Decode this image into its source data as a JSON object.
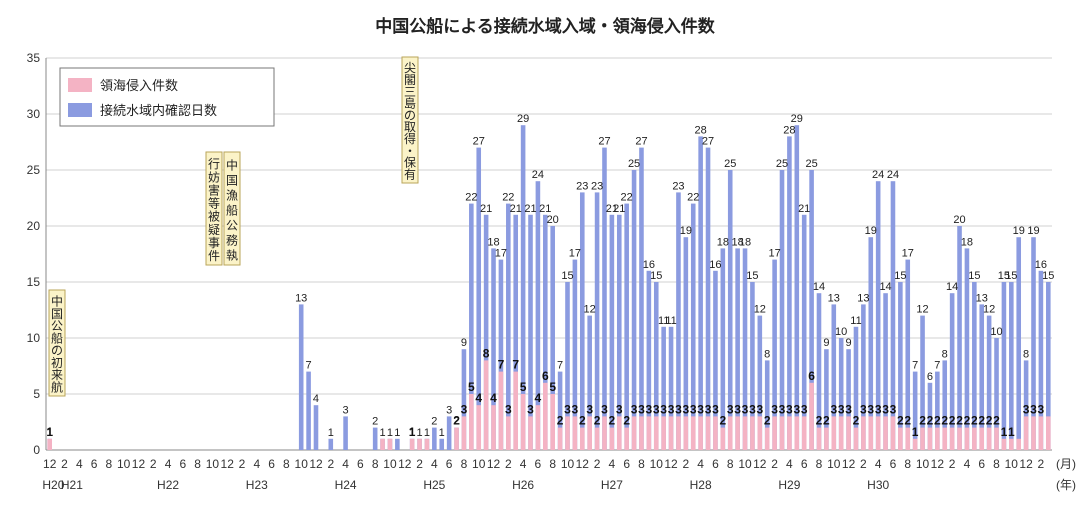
{
  "colors": {
    "blue_bar": "#8b9be0",
    "pink_bar": "#f4b3c4",
    "grid": "#d0d0d0",
    "annotation_fill": "#fbf3c8",
    "annotation_border": "#b9a55a"
  },
  "chart_data": {
    "type": "bar",
    "title": "中国公船による接続水域入域・領海侵入件数",
    "y_ticks": [
      "0",
      "5",
      "10",
      "15",
      "20",
      "25",
      "30",
      "35"
    ],
    "ylim": [
      0,
      35
    ],
    "grid": true,
    "legend_position": "top-left",
    "legend": [
      "領海侵入件数",
      "接続水域内確認日数"
    ],
    "x_unit_month": "(月)",
    "x_unit_year": "(年)",
    "month_tick_labels": [
      "12",
      "2",
      "4",
      "6",
      "8",
      "10",
      "12",
      "2",
      "4",
      "6",
      "8",
      "10",
      "12",
      "2",
      "4",
      "6",
      "8",
      "10",
      "12",
      "2",
      "4",
      "6",
      "8",
      "10",
      "12",
      "2",
      "4",
      "6",
      "8",
      "10",
      "12",
      "2",
      "4",
      "6",
      "8",
      "10",
      "12",
      "2",
      "4",
      "6",
      "8",
      "10",
      "12",
      "2",
      "4",
      "6",
      "8",
      "10",
      "12",
      "2",
      "4",
      "6",
      "8",
      "10",
      "12",
      "2",
      "4",
      "6",
      "8",
      "10",
      "12",
      "2",
      "4",
      "6",
      "8",
      "10",
      "12",
      "2"
    ],
    "era_labels": [
      "H20",
      "H21",
      "H22",
      "H23",
      "H24",
      "H25",
      "H26",
      "H27",
      "H28",
      "H29",
      "H30"
    ],
    "annotations": [
      "中国公船の初来航",
      "中国漁船公務執行妨害等被疑事件",
      "尖閣三島の取得・保有"
    ],
    "series": [
      {
        "name": "接続水域内確認日数",
        "values": [
          1,
          0,
          0,
          0,
          0,
          0,
          0,
          0,
          0,
          0,
          0,
          0,
          0,
          0,
          0,
          0,
          0,
          0,
          0,
          0,
          0,
          0,
          0,
          0,
          0,
          0,
          0,
          0,
          0,
          0,
          0,
          0,
          0,
          0,
          13,
          7,
          4,
          0,
          1,
          0,
          3,
          0,
          0,
          0,
          2,
          1,
          1,
          1,
          0,
          1,
          1,
          1,
          2,
          1,
          3,
          2,
          9,
          22,
          27,
          21,
          18,
          17,
          22,
          21,
          29,
          21,
          24,
          21,
          20,
          7,
          15,
          17,
          23,
          12,
          23,
          27,
          21,
          21,
          22,
          25,
          27,
          16,
          15,
          11,
          11,
          23,
          19,
          22,
          28,
          27,
          16,
          18,
          25,
          18,
          18,
          15,
          12,
          8,
          17,
          25,
          28,
          29,
          21,
          25,
          14,
          9,
          13,
          10,
          9,
          11,
          13,
          19,
          24,
          14,
          24,
          15,
          17,
          7,
          12,
          6,
          7,
          8,
          14,
          20,
          18,
          15,
          13,
          12,
          10,
          15,
          15,
          19,
          8,
          19,
          16,
          15
        ]
      },
      {
        "name": "領海侵入件数",
        "values": [
          1,
          0,
          0,
          0,
          0,
          0,
          0,
          0,
          0,
          0,
          0,
          0,
          0,
          0,
          0,
          0,
          0,
          0,
          0,
          0,
          0,
          0,
          0,
          0,
          0,
          0,
          0,
          0,
          0,
          0,
          0,
          0,
          0,
          0,
          0,
          0,
          0,
          0,
          0,
          0,
          0,
          0,
          0,
          0,
          0,
          1,
          1,
          0,
          0,
          1,
          1,
          1,
          0,
          0,
          0,
          2,
          3,
          5,
          4,
          8,
          4,
          7,
          3,
          7,
          5,
          3,
          4,
          6,
          5,
          2,
          3,
          3,
          2,
          3,
          2,
          3,
          2,
          3,
          2,
          3,
          3,
          3,
          3,
          3,
          3,
          3,
          3,
          3,
          3,
          3,
          3,
          2,
          3,
          3,
          3,
          3,
          3,
          2,
          3,
          3,
          3,
          3,
          3,
          6,
          2,
          2,
          3,
          3,
          3,
          2,
          3,
          3,
          3,
          3,
          3,
          2,
          2,
          1,
          2,
          2,
          2,
          2,
          2,
          2,
          2,
          2,
          2,
          2,
          2,
          1,
          1,
          1,
          3,
          3,
          3,
          3
        ]
      }
    ],
    "blue_labels": [
      [
        0,
        "1"
      ],
      [
        34,
        "13"
      ],
      [
        35,
        "7"
      ],
      [
        36,
        "4"
      ],
      [
        38,
        "1"
      ],
      [
        40,
        "3"
      ],
      [
        44,
        "2"
      ],
      [
        45,
        "1"
      ],
      [
        46,
        "1"
      ],
      [
        47,
        "1"
      ],
      [
        49,
        "1"
      ],
      [
        50,
        "1"
      ],
      [
        51,
        "1"
      ],
      [
        52,
        "2"
      ],
      [
        53,
        "1"
      ],
      [
        54,
        "3"
      ],
      [
        55,
        "2"
      ],
      [
        56,
        "9"
      ],
      [
        57,
        "22"
      ],
      [
        58,
        "27"
      ],
      [
        59,
        "21"
      ],
      [
        60,
        "18"
      ],
      [
        61,
        "17"
      ],
      [
        62,
        "22"
      ],
      [
        63,
        "21"
      ],
      [
        64,
        "29"
      ],
      [
        65,
        "21"
      ],
      [
        66,
        "24"
      ],
      [
        67,
        "21"
      ],
      [
        68,
        "20"
      ],
      [
        69,
        "7"
      ],
      [
        70,
        "15"
      ],
      [
        71,
        "17"
      ],
      [
        72,
        "23"
      ],
      [
        73,
        "12"
      ],
      [
        74,
        "23"
      ],
      [
        75,
        "27"
      ],
      [
        76,
        "21"
      ],
      [
        77,
        "21"
      ],
      [
        78,
        "22"
      ],
      [
        79,
        "25"
      ],
      [
        80,
        "27"
      ],
      [
        81,
        "16"
      ],
      [
        82,
        "15"
      ],
      [
        83,
        "11"
      ],
      [
        84,
        "11"
      ],
      [
        85,
        "23"
      ],
      [
        86,
        "19"
      ],
      [
        87,
        "22"
      ],
      [
        88,
        "28"
      ],
      [
        89,
        "27"
      ],
      [
        90,
        "16"
      ],
      [
        91,
        "18"
      ],
      [
        92,
        "25"
      ],
      [
        93,
        "18"
      ],
      [
        94,
        "18"
      ],
      [
        95,
        "15"
      ],
      [
        96,
        "12"
      ],
      [
        97,
        "8"
      ],
      [
        98,
        "17"
      ],
      [
        99,
        "25"
      ],
      [
        100,
        "28"
      ],
      [
        101,
        "29"
      ],
      [
        102,
        "21"
      ],
      [
        103,
        "25"
      ],
      [
        104,
        "14"
      ],
      [
        105,
        "9"
      ],
      [
        106,
        "13"
      ],
      [
        107,
        "10"
      ],
      [
        108,
        "9"
      ],
      [
        109,
        "11"
      ],
      [
        110,
        "13"
      ],
      [
        111,
        "19"
      ],
      [
        112,
        "24"
      ],
      [
        113,
        "14"
      ],
      [
        114,
        "24"
      ],
      [
        115,
        "15"
      ],
      [
        116,
        "17"
      ],
      [
        117,
        "7"
      ],
      [
        118,
        "12"
      ],
      [
        119,
        "6"
      ],
      [
        120,
        "7"
      ],
      [
        121,
        "8"
      ],
      [
        122,
        "14"
      ],
      [
        123,
        "20"
      ],
      [
        124,
        "18"
      ],
      [
        125,
        "15"
      ],
      [
        126,
        "13"
      ],
      [
        127,
        "12"
      ],
      [
        128,
        "10"
      ],
      [
        129,
        "15"
      ],
      [
        130,
        "15"
      ],
      [
        131,
        "19"
      ],
      [
        132,
        "8"
      ],
      [
        133,
        "19"
      ],
      [
        134,
        "16"
      ],
      [
        135,
        "15"
      ]
    ],
    "pink_labels": [
      [
        0,
        "1"
      ],
      [
        49,
        "1"
      ],
      [
        55,
        "2"
      ],
      [
        56,
        "3"
      ],
      [
        57,
        "5"
      ],
      [
        58,
        "4"
      ],
      [
        59,
        "8"
      ],
      [
        60,
        "4"
      ],
      [
        61,
        "7"
      ],
      [
        62,
        "3"
      ],
      [
        63,
        "7"
      ],
      [
        64,
        "5"
      ],
      [
        65,
        "3"
      ],
      [
        66,
        "4"
      ],
      [
        67,
        "6"
      ],
      [
        68,
        "5"
      ],
      [
        69,
        "2"
      ],
      [
        70,
        "3"
      ],
      [
        71,
        "3"
      ],
      [
        72,
        "2"
      ],
      [
        73,
        "3"
      ],
      [
        74,
        "2"
      ],
      [
        75,
        "3"
      ],
      [
        76,
        "2"
      ],
      [
        77,
        "3"
      ],
      [
        78,
        "2"
      ],
      [
        79,
        "3"
      ],
      [
        80,
        "3"
      ],
      [
        81,
        "3"
      ],
      [
        82,
        "3"
      ],
      [
        83,
        "3"
      ],
      [
        84,
        "3"
      ],
      [
        85,
        "3"
      ],
      [
        86,
        "3"
      ],
      [
        87,
        "3"
      ],
      [
        88,
        "3"
      ],
      [
        89,
        "3"
      ],
      [
        90,
        "3"
      ],
      [
        91,
        "2"
      ],
      [
        92,
        "3"
      ],
      [
        93,
        "3"
      ],
      [
        94,
        "3"
      ],
      [
        95,
        "3"
      ],
      [
        96,
        "3"
      ],
      [
        97,
        "2"
      ],
      [
        98,
        "3"
      ],
      [
        99,
        "3"
      ],
      [
        100,
        "3"
      ],
      [
        101,
        "3"
      ],
      [
        102,
        "3"
      ],
      [
        103,
        "6"
      ],
      [
        104,
        "2"
      ],
      [
        105,
        "2"
      ],
      [
        106,
        "3"
      ],
      [
        107,
        "3"
      ],
      [
        108,
        "3"
      ],
      [
        109,
        "2"
      ],
      [
        110,
        "3"
      ],
      [
        111,
        "3"
      ],
      [
        112,
        "3"
      ],
      [
        113,
        "3"
      ],
      [
        114,
        "3"
      ],
      [
        115,
        "2"
      ],
      [
        116,
        "2"
      ],
      [
        117,
        "1"
      ],
      [
        118,
        "2"
      ],
      [
        119,
        "2"
      ],
      [
        120,
        "2"
      ],
      [
        121,
        "2"
      ],
      [
        122,
        "2"
      ],
      [
        123,
        "2"
      ],
      [
        124,
        "2"
      ],
      [
        125,
        "2"
      ],
      [
        126,
        "2"
      ],
      [
        127,
        "2"
      ],
      [
        128,
        "2"
      ],
      [
        129,
        "1"
      ],
      [
        130,
        "1"
      ],
      [
        132,
        "3"
      ],
      [
        133,
        "3"
      ],
      [
        134,
        "3"
      ]
    ]
  }
}
